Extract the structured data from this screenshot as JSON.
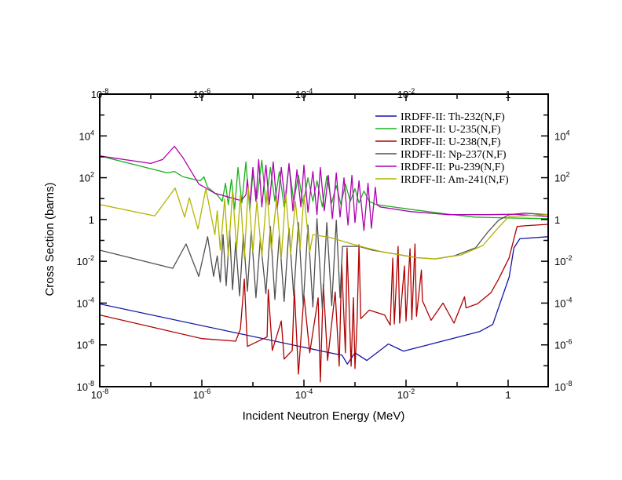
{
  "chart_data": {
    "type": "line",
    "title": "",
    "xlabel": "Incident Neutron Energy (MeV)",
    "ylabel": "Cross Section (barns)",
    "xscale": "log",
    "yscale": "log",
    "xlim": [
      1e-08,
      6.1
    ],
    "ylim": [
      1e-08,
      1000000.0
    ],
    "grid": false,
    "legend_position": "top-right",
    "x_ticks": [
      {
        "value": 1e-08,
        "base": "10",
        "exp": "-8"
      },
      {
        "value": 1e-06,
        "base": "10",
        "exp": "-6"
      },
      {
        "value": 0.0001,
        "base": "10",
        "exp": "-4"
      },
      {
        "value": 0.01,
        "base": "10",
        "exp": "-2"
      },
      {
        "value": 1,
        "base": "1",
        "exp": ""
      }
    ],
    "y_ticks": [
      {
        "value": 1e-08,
        "base": "10",
        "exp": "-8"
      },
      {
        "value": 1e-06,
        "base": "10",
        "exp": "-6"
      },
      {
        "value": 0.0001,
        "base": "10",
        "exp": "-4"
      },
      {
        "value": 0.01,
        "base": "10",
        "exp": "-2"
      },
      {
        "value": 1,
        "base": "1",
        "exp": ""
      },
      {
        "value": 100.0,
        "base": "10",
        "exp": "2"
      },
      {
        "value": 10000.0,
        "base": "10",
        "exp": "4"
      }
    ],
    "series": [
      {
        "name": "IRDFF-II: Th-232(N,F)",
        "color": "#1414a8",
        "points": [
          [
            1e-08,
            9.1e-05
          ],
          [
            0.00032,
            4.2e-07
          ],
          [
            0.00056,
            3.2e-07
          ],
          [
            0.00071,
            1.2e-07
          ],
          [
            0.001,
            4.2e-07
          ],
          [
            0.0017,
            1.8e-07
          ],
          [
            0.0045,
            1.1e-06
          ],
          [
            0.0089,
            5e-07
          ],
          [
            0.28,
            4.4e-06
          ],
          [
            0.5,
            9.5e-06
          ],
          [
            1.05,
            0.0018
          ],
          [
            1.3,
            0.044
          ],
          [
            1.7,
            0.12
          ],
          [
            6.0,
            0.15
          ]
        ]
      },
      {
        "name": "IRDFF-II: U-235(N,F)",
        "color": "#1cb01c",
        "points": [
          [
            1e-08,
            1100
          ],
          [
            2.1e-07,
            170
          ],
          [
            2.9e-07,
            200
          ],
          [
            4.3e-07,
            110
          ],
          [
            9.3e-07,
            71
          ],
          [
            1.1e-06,
            110
          ],
          [
            1.3e-06,
            35
          ],
          [
            2e-06,
            15
          ],
          [
            2.5e-06,
            7.4
          ],
          [
            2.9e-06,
            54
          ],
          [
            3.3e-06,
            5.2
          ],
          [
            3.8e-06,
            84
          ],
          [
            4.4e-06,
            3.1
          ],
          [
            5.1e-06,
            310
          ],
          [
            6.1e-06,
            6.2
          ],
          [
            7.3e-06,
            570
          ],
          [
            8.7e-06,
            2.6
          ],
          [
            1e-05,
            170
          ],
          [
            1.2e-05,
            9.6
          ],
          [
            1.5e-05,
            680
          ],
          [
            1.8e-05,
            5.2
          ],
          [
            2.2e-05,
            310
          ],
          [
            2.7e-05,
            7.4
          ],
          [
            3.3e-05,
            200
          ],
          [
            4.1e-05,
            4.0
          ],
          [
            5.1e-05,
            400
          ],
          [
            6.3e-05,
            7.4
          ],
          [
            7.8e-05,
            130
          ],
          [
            9.7e-05,
            5.2
          ],
          [
            0.00012,
            100
          ],
          [
            0.00015,
            7.4
          ],
          [
            0.00018,
            71
          ],
          [
            0.00023,
            4.0
          ],
          [
            0.00028,
            120
          ],
          [
            0.00035,
            6.2
          ],
          [
            0.00043,
            42
          ],
          [
            0.00053,
            5.2
          ],
          [
            0.00065,
            50
          ],
          [
            0.00081,
            7.4
          ],
          [
            0.001,
            30
          ],
          [
            0.0012,
            6.2
          ],
          [
            0.0015,
            23
          ],
          [
            0.0019,
            7.4
          ],
          [
            0.0026,
            5.2
          ],
          [
            0.012,
            3.1
          ],
          [
            0.068,
            1.8
          ],
          [
            0.22,
            1.3
          ],
          [
            0.73,
            1.2
          ],
          [
            6.0,
            1.1
          ]
        ]
      },
      {
        "name": "IRDFF-II: U-238(N,F)",
        "color": "#b00000",
        "points": [
          [
            1e-08,
            2.7e-05
          ],
          [
            1e-06,
            2e-06
          ],
          [
            4.6e-06,
            1.5e-06
          ],
          [
            5.7e-06,
            5.7e-06
          ],
          [
            6.8e-06,
            0.0014
          ],
          [
            7.8e-06,
            8.4e-07
          ],
          [
            1.9e-05,
            2.4e-06
          ],
          [
            2e-05,
            0.00044
          ],
          [
            2.4e-05,
            5.4e-07
          ],
          [
            3.6e-05,
            1.4e-05
          ],
          [
            4.1e-05,
            2.1e-07
          ],
          [
            5.9e-05,
            5.4e-07
          ],
          [
            6.5e-05,
            0.00044
          ],
          [
            7.8e-05,
            4e-08
          ],
          [
            0.0001,
            0.00024
          ],
          [
            0.00013,
            4.2e-07
          ],
          [
            0.00019,
            0.00018
          ],
          [
            0.00021,
            1.7e-08
          ],
          [
            0.00024,
            0.0008
          ],
          [
            0.00029,
            1.8e-07
          ],
          [
            0.00041,
            0.00034
          ],
          [
            0.00049,
            9.6e-08
          ],
          [
            0.00055,
            0.0077
          ],
          [
            0.00065,
            4.2e-07
          ],
          [
            0.0007,
            0.044
          ],
          [
            0.00084,
            9.6e-08
          ],
          [
            0.00093,
            0.00018
          ],
          [
            0.001,
            7.4e-08
          ],
          [
            0.0011,
            1.2e-05
          ],
          [
            0.0012,
            0.062
          ],
          [
            0.0013,
            1.8e-05
          ],
          [
            0.0019,
            4.6e-05
          ],
          [
            0.0038,
            2.7e-05
          ],
          [
            0.0049,
            8.8e-06
          ],
          [
            0.0055,
            0.014
          ],
          [
            0.0059,
            1e-05
          ],
          [
            0.007,
            0.052
          ],
          [
            0.0075,
            1.1e-05
          ],
          [
            0.0093,
            0.0059
          ],
          [
            0.01,
            1.4e-05
          ],
          [
            0.012,
            0.04
          ],
          [
            0.013,
            1.6e-05
          ],
          [
            0.015,
            0.068
          ],
          [
            0.016,
            2.3e-05
          ],
          [
            0.02,
            0.0038
          ],
          [
            0.021,
            0.00013
          ],
          [
            0.031,
            1.5e-05
          ],
          [
            0.053,
            0.0001
          ],
          [
            0.087,
            1.1e-05
          ],
          [
            0.14,
            0.0002
          ],
          [
            0.15,
            5.9e-05
          ],
          [
            0.25,
            9.2e-05
          ],
          [
            0.46,
            0.00031
          ],
          [
            0.65,
            0.0014
          ],
          [
            1.04,
            0.014
          ],
          [
            1.5,
            0.46
          ],
          [
            2.1,
            0.5
          ],
          [
            6.0,
            0.59
          ]
        ]
      },
      {
        "name": "IRDFF-II: Np-237(N,F)",
        "color": "#505050",
        "points": [
          [
            1e-08,
            0.034
          ],
          [
            2.7e-07,
            0.0046
          ],
          [
            4.9e-07,
            0.068
          ],
          [
            8.7e-07,
            0.0019
          ],
          [
            1.3e-06,
            0.15
          ],
          [
            1.7e-06,
            0.0019
          ],
          [
            2e-06,
            0.018
          ],
          [
            2.3e-06,
            0.001
          ],
          [
            2.6e-06,
            0.19
          ],
          [
            3e-06,
            0.00068
          ],
          [
            3.5e-06,
            0.3
          ],
          [
            4e-06,
            0.00044
          ],
          [
            4.6e-06,
            0.08
          ],
          [
            5.5e-06,
            0.00022
          ],
          [
            6.5e-06,
            0.19
          ],
          [
            7.8e-06,
            0.00037
          ],
          [
            9.3e-06,
            0.3
          ],
          [
            1.15e-05,
            0.00018
          ],
          [
            1.4e-05,
            0.12
          ],
          [
            1.8e-05,
            0.00028
          ],
          [
            2.2e-05,
            0.46
          ],
          [
            2.7e-05,
            0.00015
          ],
          [
            3.3e-05,
            0.19
          ],
          [
            4.1e-05,
            0.00012
          ],
          [
            5.1e-05,
            0.38
          ],
          [
            6.3e-05,
            0.00022
          ],
          [
            7.8e-05,
            0.71
          ],
          [
            9.7e-05,
            7.7e-05
          ],
          [
            0.00012,
            0.54
          ],
          [
            0.00015,
            6.5e-05
          ],
          [
            0.00018,
            1.1
          ],
          [
            0.00023,
            5e-05
          ],
          [
            0.00028,
            0.71
          ],
          [
            0.00035,
            7.7e-05
          ],
          [
            0.00043,
            0.92
          ],
          [
            0.00051,
            0.00018
          ],
          [
            0.00057,
            0.052
          ],
          [
            0.0012,
            0.052
          ],
          [
            0.0022,
            0.034
          ],
          [
            0.0063,
            0.022
          ],
          [
            0.016,
            0.015
          ],
          [
            0.037,
            0.013
          ],
          [
            0.087,
            0.018
          ],
          [
            0.23,
            0.044
          ],
          [
            0.4,
            0.25
          ],
          [
            0.65,
            0.92
          ],
          [
            1.04,
            1.7
          ],
          [
            2.1,
            2.0
          ],
          [
            6.0,
            1.7
          ]
        ]
      },
      {
        "name": "IRDFF-II: Pu-239(N,F)",
        "color": "#b000b0",
        "points": [
          [
            1e-08,
            1100
          ],
          [
            1e-07,
            480
          ],
          [
            1.7e-07,
            740
          ],
          [
            2.9e-07,
            3200
          ],
          [
            4.3e-07,
            880
          ],
          [
            8.7e-07,
            50
          ],
          [
            1.8e-06,
            18
          ],
          [
            5.9e-06,
            8.0
          ],
          [
            7.3e-06,
            15
          ],
          [
            7.8e-06,
            84
          ],
          [
            8.7e-06,
            5.2
          ],
          [
            1e-05,
            310
          ],
          [
            1.15e-05,
            7.4
          ],
          [
            1.3e-05,
            740
          ],
          [
            1.5e-05,
            4.0
          ],
          [
            1.8e-05,
            400
          ],
          [
            2.1e-05,
            5.2
          ],
          [
            2.5e-05,
            570
          ],
          [
            3e-05,
            3.1
          ],
          [
            3.6e-05,
            310
          ],
          [
            4.3e-05,
            6.2
          ],
          [
            5.1e-05,
            480
          ],
          [
            6.1e-05,
            2.6
          ],
          [
            7.3e-05,
            240
          ],
          [
            8.7e-05,
            4.0
          ],
          [
            0.0001,
            400
          ],
          [
            0.00012,
            2.2
          ],
          [
            0.00015,
            200
          ],
          [
            0.00018,
            1.7
          ],
          [
            0.00021,
            310
          ],
          [
            0.00025,
            2.6
          ],
          [
            0.0003,
            130
          ],
          [
            0.00036,
            1.1
          ],
          [
            0.00043,
            170
          ],
          [
            0.00051,
            1.3
          ],
          [
            0.00061,
            100
          ],
          [
            0.00073,
            0.54
          ],
          [
            0.00087,
            130
          ],
          [
            0.001,
            0.71
          ],
          [
            0.0012,
            71
          ],
          [
            0.0015,
            0.3
          ],
          [
            0.0018,
            54
          ],
          [
            0.0021,
            0.38
          ],
          [
            0.0025,
            35
          ],
          [
            0.0027,
            5.2
          ],
          [
            0.0031,
            4.0
          ],
          [
            0.012,
            2.4
          ],
          [
            0.068,
            1.7
          ],
          [
            0.4,
            1.7
          ],
          [
            1.3,
            1.8
          ],
          [
            6.0,
            1.4
          ]
        ]
      },
      {
        "name": "IRDFF-II: Am-241(N,F)",
        "color": "#b4b400",
        "points": [
          [
            1e-08,
            5.2
          ],
          [
            1.2e-07,
            1.5
          ],
          [
            3e-07,
            32
          ],
          [
            4.6e-07,
            1.3
          ],
          [
            5.7e-07,
            11
          ],
          [
            8.4e-07,
            0.35
          ],
          [
            1.2e-06,
            30
          ],
          [
            1.8e-06,
            0.19
          ],
          [
            2e-06,
            2.6
          ],
          [
            2.3e-06,
            0.034
          ],
          [
            2.8e-06,
            9.6
          ],
          [
            3.3e-06,
            0.017
          ],
          [
            4e-06,
            23
          ],
          [
            4.8e-06,
            0.04
          ],
          [
            5.7e-06,
            15
          ],
          [
            6.8e-06,
            0.014
          ],
          [
            8.1e-06,
            35
          ],
          [
            1e-05,
            0.028
          ],
          [
            1.2e-05,
            7.4
          ],
          [
            1.5e-05,
            0.017
          ],
          [
            1.9e-05,
            23
          ],
          [
            2.3e-05,
            0.034
          ],
          [
            2.9e-05,
            9.6
          ],
          [
            3.6e-05,
            0.014
          ],
          [
            4.4e-05,
            18
          ],
          [
            5.5e-05,
            0.022
          ],
          [
            6.8e-05,
            7.4
          ],
          [
            8.4e-05,
            0.04
          ],
          [
            0.0001,
            15
          ],
          [
            0.00013,
            0.028
          ],
          [
            0.00015,
            0.19
          ],
          [
            0.00032,
            0.14
          ],
          [
            0.0011,
            0.057
          ],
          [
            0.0035,
            0.028
          ],
          [
            0.016,
            0.015
          ],
          [
            0.037,
            0.013
          ],
          [
            0.12,
            0.02
          ],
          [
            0.32,
            0.057
          ],
          [
            0.65,
            0.42
          ],
          [
            1.04,
            1.4
          ],
          [
            6.0,
            1.7
          ]
        ]
      }
    ]
  }
}
